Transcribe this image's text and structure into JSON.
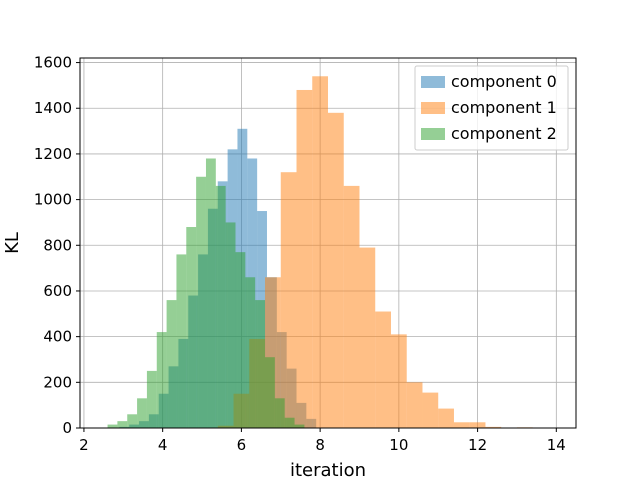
{
  "chart_data": {
    "type": "bar",
    "subtype": "histogram",
    "title": "",
    "xlabel": "iteration",
    "ylabel": "KL",
    "xlim": [
      1.9,
      14.5
    ],
    "ylim": [
      0,
      1620
    ],
    "xticks": [
      2,
      4,
      6,
      8,
      10,
      12,
      14
    ],
    "yticks": [
      0,
      200,
      400,
      600,
      800,
      1000,
      1200,
      1400,
      1600
    ],
    "grid": true,
    "legend_position": "top-right",
    "series": [
      {
        "name": "component 0",
        "color": "#1f77b4",
        "alpha": 0.5,
        "bin_edges": [
          2.9,
          3.15,
          3.4,
          3.65,
          3.9,
          4.15,
          4.4,
          4.65,
          4.9,
          5.15,
          5.4,
          5.65,
          5.9,
          6.15,
          6.4,
          6.65,
          6.9,
          7.15,
          7.4,
          7.65,
          7.9
        ],
        "counts": [
          5,
          15,
          30,
          60,
          150,
          270,
          390,
          580,
          760,
          960,
          1080,
          1220,
          1310,
          1180,
          950,
          660,
          420,
          260,
          110,
          40
        ]
      },
      {
        "name": "component 1",
        "color": "#ff7f0e",
        "alpha": 0.5,
        "bin_edges": [
          5.4,
          5.8,
          6.2,
          6.6,
          7.0,
          7.4,
          7.8,
          8.2,
          8.6,
          9.0,
          9.4,
          9.8,
          10.2,
          10.6,
          11.0,
          11.4,
          11.8,
          12.2,
          12.6,
          13.0,
          13.4,
          13.8,
          14.0
        ],
        "counts": [
          10,
          150,
          390,
          660,
          1120,
          1480,
          1540,
          1380,
          1060,
          790,
          510,
          410,
          200,
          155,
          85,
          25,
          25,
          5,
          0,
          3,
          0,
          2
        ]
      },
      {
        "name": "component 2",
        "color": "#2ca02c",
        "alpha": 0.5,
        "bin_edges": [
          2.6,
          2.85,
          3.1,
          3.35,
          3.6,
          3.85,
          4.1,
          4.35,
          4.6,
          4.85,
          5.1,
          5.35,
          5.6,
          5.85,
          6.1,
          6.35,
          6.6,
          6.85,
          7.1,
          7.35,
          7.6
        ],
        "counts": [
          15,
          30,
          60,
          130,
          250,
          420,
          560,
          760,
          880,
          1100,
          1180,
          1060,
          900,
          770,
          660,
          560,
          310,
          130,
          45,
          15
        ]
      }
    ]
  }
}
